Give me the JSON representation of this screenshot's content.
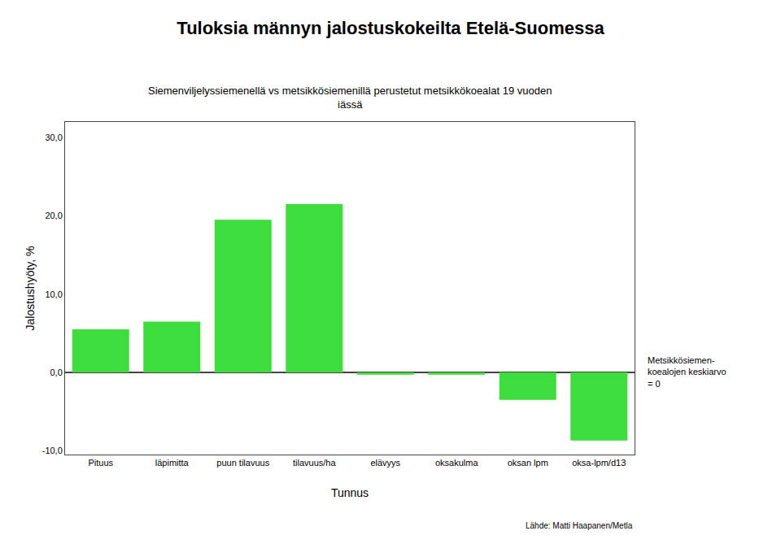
{
  "chart_data": {
    "type": "bar",
    "title": "Tuloksia männyn jalostuskokeilta Etelä-Suomessa",
    "subtitle": "Siemenviljelyssiemenellä vs metsikkösiemenillä perustetut metsikkökoealat 19 vuoden\niässä",
    "xlabel": "Tunnus",
    "ylabel": "Jalostushyöty, %",
    "source": "Lähde: Matti Haapanen/Metla",
    "annotation": "Metsikkösiemen-\nkoealojen keskiarvo\n= 0",
    "categories": [
      "Pituus",
      "läpimitta",
      "puun tilavuus",
      "tilavuus/ha",
      "elävyys",
      "oksakulma",
      "oksan lpm",
      "oksa-lpm/d13"
    ],
    "values": [
      5.5,
      6.5,
      19.5,
      21.5,
      -0.3,
      -0.3,
      -3.5,
      -8.7
    ],
    "color": "#3ddd3d",
    "ylim": [
      -10.5,
      32
    ],
    "yticks": [
      {
        "value": -10.0,
        "label": "-10,0"
      },
      {
        "value": 0.0,
        "label": "0,0"
      },
      {
        "value": 10.0,
        "label": "10,0"
      },
      {
        "value": 20.0,
        "label": "20,0"
      },
      {
        "value": 30.0,
        "label": "30,0"
      }
    ],
    "grid": false
  }
}
